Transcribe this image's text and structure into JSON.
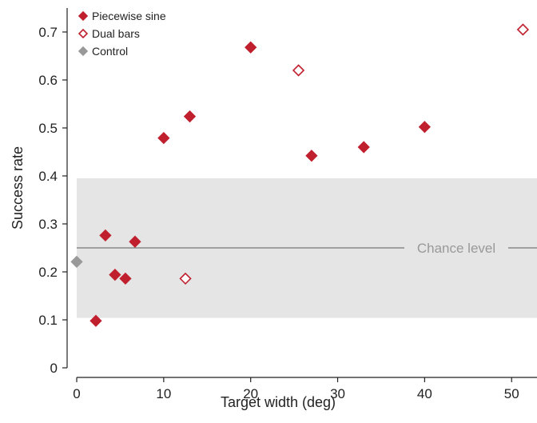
{
  "chart_data": {
    "type": "scatter",
    "xlabel": "Target width (deg)",
    "ylabel": "Success rate",
    "xlim": [
      0,
      52
    ],
    "ylim": [
      0,
      0.75
    ],
    "x_ticks": [
      0,
      10,
      20,
      30,
      40,
      50
    ],
    "y_ticks": [
      0,
      0.1,
      0.2,
      0.3,
      0.4,
      0.5,
      0.6,
      0.7
    ],
    "x_tick_labels": [
      "0",
      "10",
      "20",
      "30",
      "40",
      "50"
    ],
    "y_tick_labels": [
      "0",
      "0.1",
      "0.2",
      "0.3",
      "0.4",
      "0.5",
      "0.6",
      "0.7"
    ],
    "grid": false,
    "legend_position": "top-left",
    "band": {
      "y_low": 0.104,
      "y_high": 0.395,
      "color": "#e5e5e5"
    },
    "reference_line": {
      "y": 0.25,
      "label": "Chance level",
      "color": "#888888"
    },
    "series": [
      {
        "name": "Piecewise sine",
        "marker": "filled-diamond",
        "color": "#c0202e",
        "points": [
          {
            "x": 2.2,
            "y": 0.098
          },
          {
            "x": 3.3,
            "y": 0.276
          },
          {
            "x": 4.4,
            "y": 0.194
          },
          {
            "x": 5.6,
            "y": 0.186
          },
          {
            "x": 6.7,
            "y": 0.263
          },
          {
            "x": 10.0,
            "y": 0.479
          },
          {
            "x": 13.0,
            "y": 0.524
          },
          {
            "x": 20.0,
            "y": 0.668
          },
          {
            "x": 27.0,
            "y": 0.442
          },
          {
            "x": 33.0,
            "y": 0.46
          },
          {
            "x": 40.0,
            "y": 0.502
          }
        ]
      },
      {
        "name": "Dual bars",
        "marker": "open-diamond",
        "color": "#c0202e",
        "points": [
          {
            "x": 12.5,
            "y": 0.186
          },
          {
            "x": 25.5,
            "y": 0.62
          },
          {
            "x": 51.3,
            "y": 0.705
          }
        ]
      },
      {
        "name": "Control",
        "marker": "filled-diamond",
        "color": "#999999",
        "points": [
          {
            "x": 0.0,
            "y": 0.221
          }
        ]
      }
    ]
  }
}
